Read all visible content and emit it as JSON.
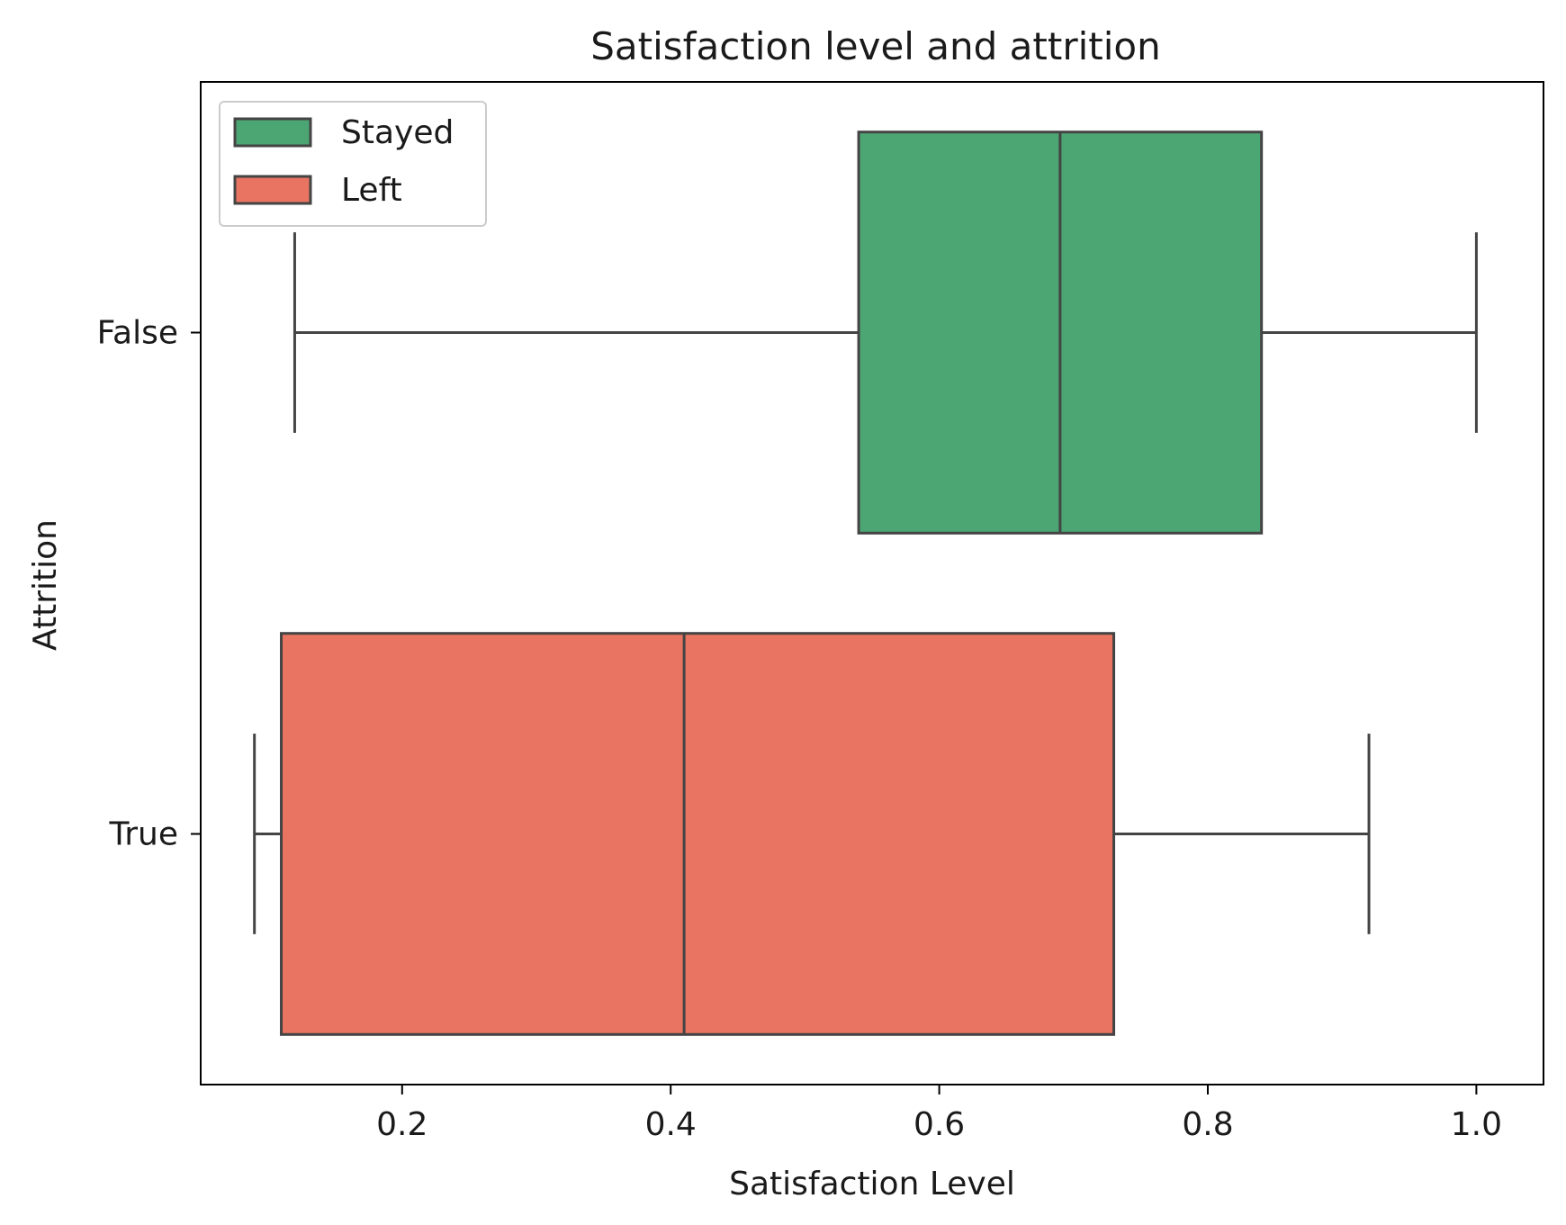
{
  "chart_data": {
    "type": "boxplot",
    "orientation": "horizontal",
    "title": "Satisfaction level and attrition",
    "xlabel": "Satisfaction Level",
    "ylabel": "Attrition",
    "xlim": [
      0.05,
      1.05
    ],
    "xticks": [
      0.2,
      0.4,
      0.6,
      0.8,
      1.0
    ],
    "xtick_labels": [
      "0.2",
      "0.4",
      "0.6",
      "0.8",
      "1.0"
    ],
    "categories": [
      "False",
      "True"
    ],
    "series": [
      {
        "name": "Stayed",
        "category": "False",
        "color": "#4ca674",
        "whisker_low": 0.12,
        "q1": 0.54,
        "median": 0.69,
        "q3": 0.84,
        "whisker_high": 1.0
      },
      {
        "name": "Left",
        "category": "True",
        "color": "#e87461",
        "whisker_low": 0.09,
        "q1": 0.11,
        "median": 0.41,
        "q3": 0.73,
        "whisker_high": 0.92
      }
    ],
    "legend": {
      "position": "top-left",
      "entries": [
        "Stayed",
        "Left"
      ]
    },
    "grid": false,
    "line_color": "#444444"
  }
}
